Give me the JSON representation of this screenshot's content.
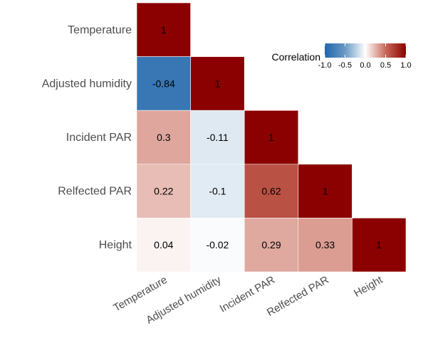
{
  "chart_data": {
    "type": "heatmap",
    "title": "",
    "xlabel": "",
    "ylabel": "",
    "variables": [
      "Temperature",
      "Adjusted humidity",
      "Incident PAR",
      "Relfected PAR",
      "Height"
    ],
    "x_tick_labels": [
      "Temperature",
      "Adjusted humidity",
      "Incident PAR",
      "Relfected PAR",
      "Height"
    ],
    "y_tick_labels": [
      "Temperature",
      "Adjusted humidity",
      "Incident PAR",
      "Relfected PAR",
      "Height"
    ],
    "triangle": "lower",
    "cells": [
      {
        "row": 0,
        "col": 0,
        "value": 1,
        "label": "1"
      },
      {
        "row": 1,
        "col": 0,
        "value": -0.84,
        "label": "-0.84"
      },
      {
        "row": 1,
        "col": 1,
        "value": 1,
        "label": "1"
      },
      {
        "row": 2,
        "col": 0,
        "value": 0.3,
        "label": "0.3"
      },
      {
        "row": 2,
        "col": 1,
        "value": -0.11,
        "label": "-0.11"
      },
      {
        "row": 2,
        "col": 2,
        "value": 1,
        "label": "1"
      },
      {
        "row": 3,
        "col": 0,
        "value": 0.22,
        "label": "0.22"
      },
      {
        "row": 3,
        "col": 1,
        "value": -0.1,
        "label": "-0.1"
      },
      {
        "row": 3,
        "col": 2,
        "value": 0.62,
        "label": "0.62"
      },
      {
        "row": 3,
        "col": 3,
        "value": 1,
        "label": "1"
      },
      {
        "row": 4,
        "col": 0,
        "value": 0.04,
        "label": "0.04"
      },
      {
        "row": 4,
        "col": 1,
        "value": -0.02,
        "label": "-0.02"
      },
      {
        "row": 4,
        "col": 2,
        "value": 0.29,
        "label": "0.29"
      },
      {
        "row": 4,
        "col": 3,
        "value": 0.33,
        "label": "0.33"
      },
      {
        "row": 4,
        "col": 4,
        "value": 1,
        "label": "1"
      }
    ],
    "legend": {
      "title": "Correlation",
      "position": "top-right",
      "range": [
        -1,
        1
      ],
      "ticks": [
        -1.0,
        -0.5,
        0.0,
        0.5,
        1.0
      ],
      "tick_labels": [
        "-1.0",
        "-0.5",
        "0.0",
        "0.5",
        "1.0"
      ]
    },
    "colors": {
      "low": "#2166ac",
      "mid": "#ffffff",
      "high": "#8b0000",
      "low_mid": "#6a9ac4",
      "high_mid": "#c86a5a"
    },
    "grid": false
  }
}
